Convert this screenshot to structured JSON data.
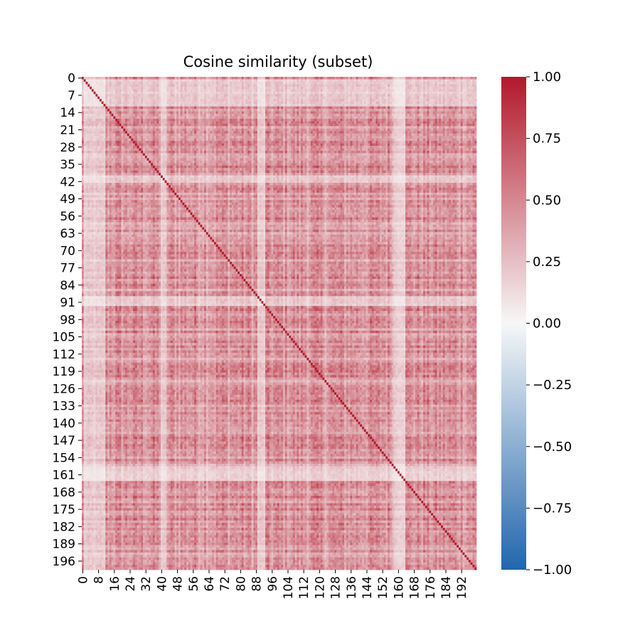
{
  "chart_data": {
    "type": "heatmap",
    "title": "Cosine similarity (subset)",
    "xlabel": "",
    "ylabel": "",
    "n_rows": 200,
    "n_cols": 200,
    "row_tick_labels": [
      "0",
      "7",
      "14",
      "21",
      "28",
      "35",
      "42",
      "49",
      "56",
      "63",
      "70",
      "77",
      "84",
      "91",
      "98",
      "105",
      "112",
      "119",
      "126",
      "133",
      "140",
      "147",
      "154",
      "161",
      "168",
      "175",
      "182",
      "189",
      "196"
    ],
    "col_tick_labels": [
      "0",
      "8",
      "16",
      "24",
      "32",
      "40",
      "48",
      "56",
      "64",
      "72",
      "80",
      "88",
      "96",
      "104",
      "112",
      "120",
      "128",
      "136",
      "144",
      "152",
      "160",
      "168",
      "176",
      "184",
      "192"
    ],
    "diagonal_value": 1.0,
    "value_range": [
      -1.0,
      1.0
    ],
    "colormap": {
      "name": "vlag-like diverging",
      "negative": "#2166ac",
      "zero": "#f7f7f7",
      "positive": "#b2182b"
    },
    "colorbar": {
      "ticks": [
        1.0,
        0.75,
        0.5,
        0.25,
        0.0,
        -0.25,
        -0.5,
        -0.75,
        -1.0
      ],
      "tick_labels": [
        "1.00",
        "0.75",
        "0.50",
        "0.25",
        "0.00",
        "−0.25",
        "−0.50",
        "−0.75",
        "−1.00"
      ]
    },
    "low_similarity_rows": [
      1,
      2,
      3,
      4,
      5,
      6,
      7,
      8,
      9,
      10,
      11,
      40,
      41,
      42,
      89,
      90,
      91,
      92,
      158,
      159,
      160,
      161,
      162,
      163
    ],
    "grid": false,
    "legend": "colorbar-right"
  }
}
